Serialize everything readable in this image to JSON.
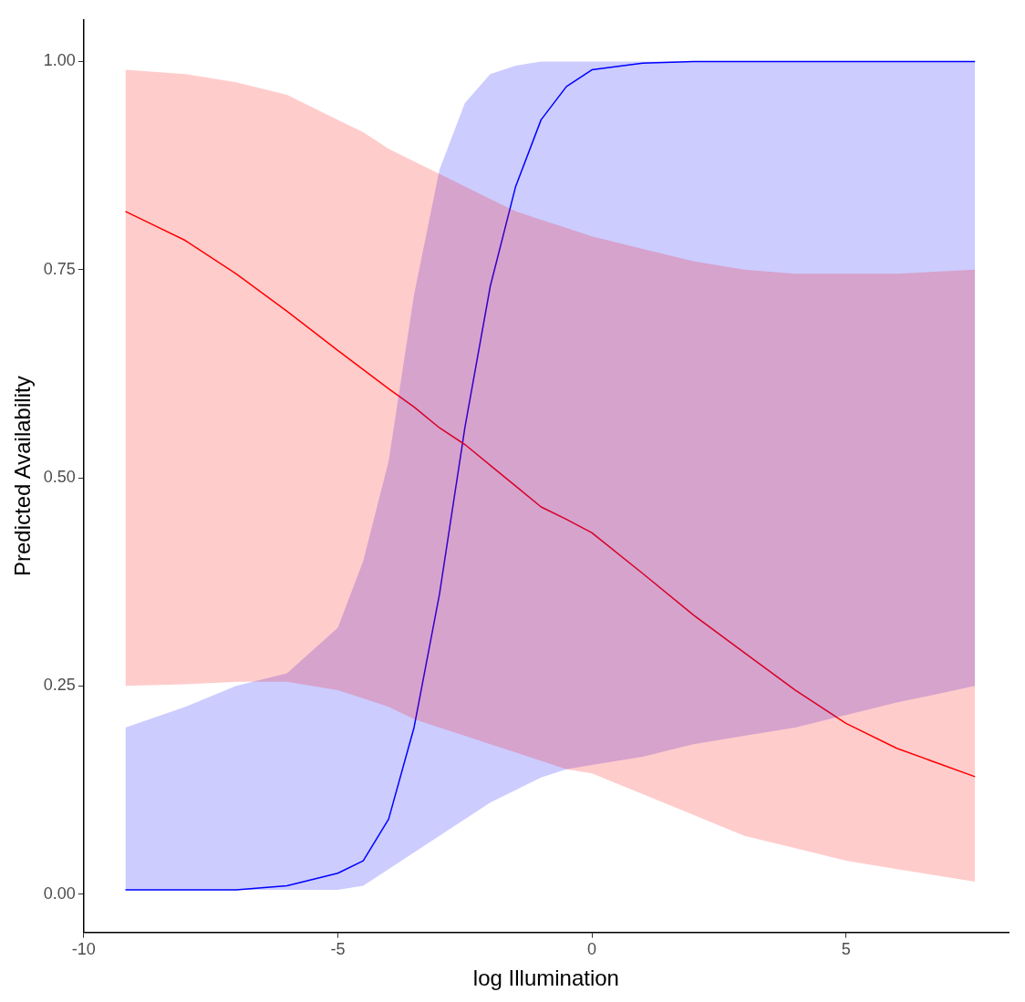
{
  "chart_data": {
    "type": "line",
    "xlabel": "log Illumination",
    "ylabel": "Predicted Availability",
    "x": [
      -9.18,
      -8,
      -7,
      -6,
      -5,
      -4.5,
      -4,
      -3.5,
      -3,
      -2.5,
      -2,
      -1.5,
      -1,
      -0.5,
      0,
      1,
      2,
      3,
      4,
      5,
      6,
      7.54
    ],
    "series": [
      {
        "color": "#ff0000",
        "values": [
          0.82,
          0.785,
          0.745,
          0.7,
          0.653,
          0.63,
          0.607,
          0.585,
          0.56,
          0.54,
          0.515,
          0.49,
          0.465,
          0.45,
          0.434,
          0.385,
          0.335,
          0.29,
          0.245,
          0.205,
          0.175,
          0.141
        ],
        "lower": [
          0.25,
          0.252,
          0.255,
          0.255,
          0.245,
          0.235,
          0.225,
          0.21,
          0.2,
          0.19,
          0.18,
          0.17,
          0.16,
          0.15,
          0.145,
          0.12,
          0.095,
          0.07,
          0.055,
          0.04,
          0.03,
          0.015
        ],
        "upper": [
          0.99,
          0.985,
          0.975,
          0.96,
          0.93,
          0.915,
          0.895,
          0.88,
          0.865,
          0.85,
          0.835,
          0.82,
          0.81,
          0.8,
          0.79,
          0.775,
          0.76,
          0.75,
          0.745,
          0.745,
          0.745,
          0.75
        ]
      },
      {
        "color": "#0000ff",
        "values": [
          0.005,
          0.005,
          0.005,
          0.01,
          0.025,
          0.04,
          0.09,
          0.2,
          0.36,
          0.56,
          0.73,
          0.85,
          0.93,
          0.97,
          0.99,
          0.998,
          1,
          1,
          1,
          1,
          1,
          1
        ],
        "lower": [
          0.005,
          0.005,
          0.005,
          0.005,
          0.005,
          0.01,
          0.03,
          0.05,
          0.07,
          0.09,
          0.11,
          0.125,
          0.14,
          0.15,
          0.155,
          0.165,
          0.18,
          0.19,
          0.2,
          0.215,
          0.23,
          0.25
        ],
        "upper": [
          0.2,
          0.225,
          0.25,
          0.265,
          0.32,
          0.4,
          0.52,
          0.72,
          0.87,
          0.95,
          0.985,
          0.995,
          1,
          1,
          1,
          1,
          1,
          1,
          1,
          1,
          1,
          1
        ]
      }
    ],
    "xlim": [
      -10,
      8.2
    ],
    "xticks": [
      -10,
      -5,
      0,
      5
    ],
    "ylim": [
      -0.046,
      1.05
    ],
    "yticks": [
      {
        "value": 0,
        "label": "0.00"
      },
      {
        "value": 0.25,
        "label": "0.25"
      },
      {
        "value": 0.5,
        "label": "0.50"
      },
      {
        "value": 0.75,
        "label": "0.75"
      },
      {
        "value": 1,
        "label": "1.00"
      }
    ],
    "grid": false,
    "legend": false,
    "marker": "none",
    "line_style": "solid"
  }
}
